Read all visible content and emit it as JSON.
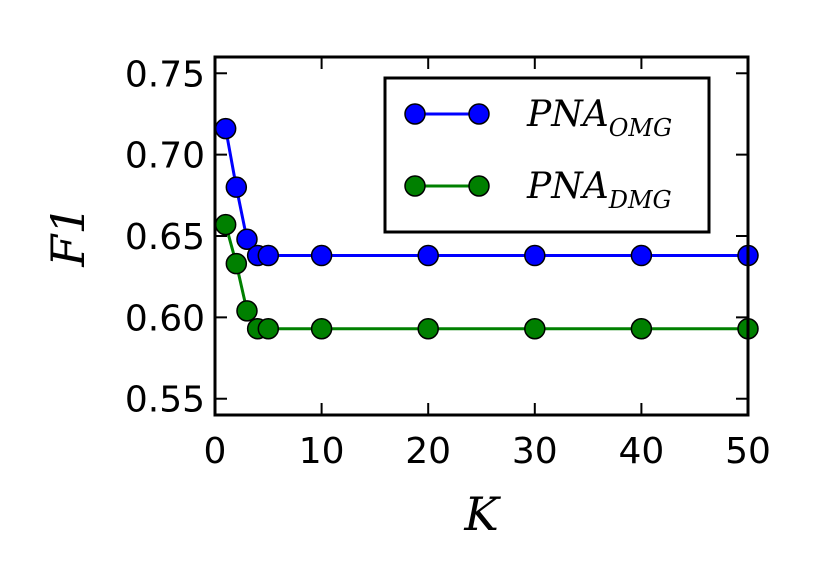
{
  "chart_data": {
    "type": "line",
    "xlabel": "K",
    "ylabel": "F1",
    "xlim": [
      0,
      50
    ],
    "ylim": [
      0.54,
      0.76
    ],
    "x_ticks": [
      "0",
      "10",
      "20",
      "30",
      "40",
      "50"
    ],
    "y_ticks": [
      "0.55",
      "0.60",
      "0.65",
      "0.70",
      "0.75"
    ],
    "grid": false,
    "legend_position": "top-right",
    "series": [
      {
        "name_main": "PNA",
        "name_sub": "OMG",
        "color": "#0000ff",
        "x": [
          1,
          2,
          3,
          4,
          5,
          10,
          20,
          30,
          40,
          50
        ],
        "values": [
          0.716,
          0.68,
          0.648,
          0.638,
          0.638,
          0.638,
          0.638,
          0.638,
          0.638,
          0.638
        ]
      },
      {
        "name_main": "PNA",
        "name_sub": "DMG",
        "color": "#008000",
        "x": [
          1,
          2,
          3,
          4,
          5,
          10,
          20,
          30,
          40,
          50
        ],
        "values": [
          0.657,
          0.633,
          0.604,
          0.593,
          0.593,
          0.593,
          0.593,
          0.593,
          0.593,
          0.593
        ]
      }
    ]
  }
}
